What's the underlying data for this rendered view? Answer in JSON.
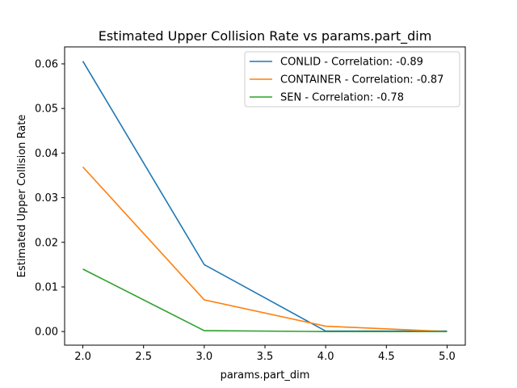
{
  "chart_data": {
    "type": "line",
    "title": "Estimated Upper Collision Rate vs params.part_dim",
    "xlabel": "params.part_dim",
    "ylabel": "Estimated Upper Collision Rate",
    "x": [
      2.0,
      3.0,
      4.0,
      5.0
    ],
    "xlim": [
      1.85,
      5.15
    ],
    "ylim": [
      -0.00305,
      0.0638
    ],
    "xticks": [
      2.0,
      2.5,
      3.0,
      3.5,
      4.0,
      4.5,
      5.0
    ],
    "xtick_labels": [
      "2.0",
      "2.5",
      "3.0",
      "3.5",
      "4.0",
      "4.5",
      "5.0"
    ],
    "yticks": [
      0.0,
      0.01,
      0.02,
      0.03,
      0.04,
      0.05,
      0.06
    ],
    "ytick_labels": [
      "0.00",
      "0.01",
      "0.02",
      "0.03",
      "0.04",
      "0.05",
      "0.06"
    ],
    "grid": false,
    "legend_position": "top-right",
    "series": [
      {
        "name": "CONLID - Correlation: -0.89",
        "color": "#1f77b4",
        "values": [
          0.0606,
          0.015,
          0.0001,
          0.0001
        ]
      },
      {
        "name": "CONTAINER - Correlation: -0.87",
        "color": "#ff7f0e",
        "values": [
          0.0369,
          0.0071,
          0.0012,
          0.0
        ]
      },
      {
        "name": "SEN - Correlation: -0.78",
        "color": "#2ca02c",
        "values": [
          0.014,
          0.0002,
          0.0,
          0.0
        ]
      }
    ]
  }
}
